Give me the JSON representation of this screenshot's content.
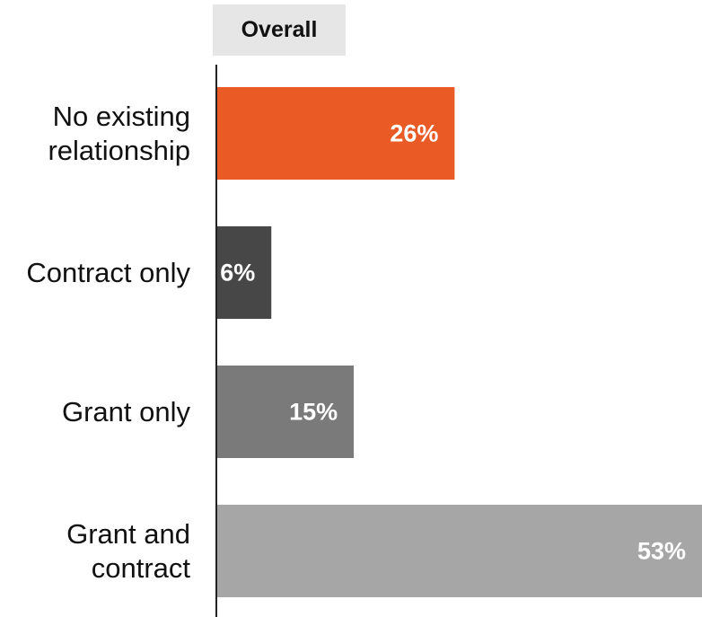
{
  "chart_data": {
    "type": "bar",
    "orientation": "horizontal",
    "title": "Overall",
    "categories": [
      "No existing relationship",
      "Contract only",
      "Grant only",
      "Grant and contract"
    ],
    "values": [
      26,
      6,
      15,
      53
    ],
    "value_labels": [
      "26%",
      "6%",
      "15%",
      "53%"
    ],
    "colors": [
      "#e95a24",
      "#474747",
      "#7a7a7a",
      "#a6a6a6"
    ]
  }
}
